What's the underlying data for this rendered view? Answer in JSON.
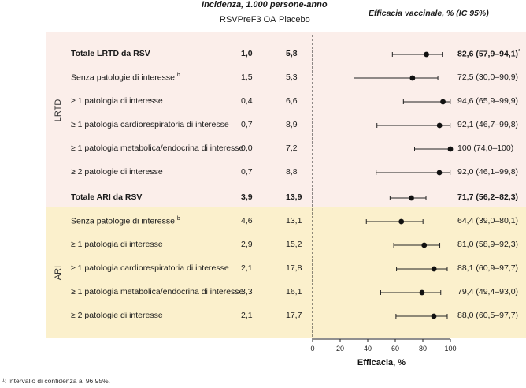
{
  "header": {
    "incidence_title": "Incidenza, 1.000 persone-anno",
    "col_vaccine": "RSVPreF3 OA",
    "col_placebo": "Placebo",
    "efficacy_title": "Efficacia vaccinale, % (IC 95%)"
  },
  "groups": {
    "lrtd": "LRTD",
    "ari": "ARI"
  },
  "footnote": "¹: Intervallo di confidenza al 96,95%.",
  "chart_data": {
    "type": "forest",
    "xlabel": "Efficacia, %",
    "xlim": [
      0,
      100
    ],
    "xticks": [
      "0",
      "20",
      "40",
      "60",
      "80",
      "100"
    ],
    "rows": [
      {
        "group": "LRTD",
        "label": "Totale LRTD da RSV",
        "sup": "",
        "bold": true,
        "vaccine": "1,0",
        "placebo": "5,8",
        "efficacy_text": "82,6 (57,9–94,1)",
        "eff_sup": "¹",
        "point": 82.6,
        "lo": 57.9,
        "hi": 94.1
      },
      {
        "group": "LRTD",
        "label": "Senza patologie di interesse",
        "sup": "b",
        "bold": false,
        "vaccine": "1,5",
        "placebo": "5,3",
        "efficacy_text": "72,5 (30,0–90,9)",
        "eff_sup": "",
        "point": 72.5,
        "lo": 30.0,
        "hi": 90.9
      },
      {
        "group": "LRTD",
        "label": "≥ 1 patologia di interesse",
        "sup": "",
        "bold": false,
        "vaccine": "0,4",
        "placebo": "6,6",
        "efficacy_text": "94,6 (65,9–99,9)",
        "eff_sup": "",
        "point": 94.6,
        "lo": 65.9,
        "hi": 99.9
      },
      {
        "group": "LRTD",
        "label": "≥ 1 patologia cardiorespiratoria di interesse",
        "sup": "",
        "bold": false,
        "vaccine": "0,7",
        "placebo": "8,9",
        "efficacy_text": "92,1 (46,7–99,8)",
        "eff_sup": "",
        "point": 92.1,
        "lo": 46.7,
        "hi": 99.8
      },
      {
        "group": "LRTD",
        "label": "≥ 1 patologia metabolica/endocrina di interesse",
        "sup": "",
        "bold": false,
        "vaccine": "0,0",
        "placebo": "7,2",
        "efficacy_text": "100 (74,0–100)",
        "eff_sup": "",
        "point": 100,
        "lo": 74.0,
        "hi": 100
      },
      {
        "group": "LRTD",
        "label": "≥ 2 patologie di interesse",
        "sup": "",
        "bold": false,
        "vaccine": "0,7",
        "placebo": "8,8",
        "efficacy_text": "92,0 (46,1–99,8)",
        "eff_sup": "",
        "point": 92.0,
        "lo": 46.1,
        "hi": 99.8
      },
      {
        "group": "ARI",
        "label": "Totale ARI da RSV",
        "sup": "",
        "bold": true,
        "vaccine": "3,9",
        "placebo": "13,9",
        "efficacy_text": "71,7 (56,2–82,3)",
        "eff_sup": "",
        "point": 71.7,
        "lo": 56.2,
        "hi": 82.3
      },
      {
        "group": "ARI",
        "label": "Senza patologie di interesse",
        "sup": "b",
        "bold": false,
        "vaccine": "4,6",
        "placebo": "13,1",
        "efficacy_text": "64,4 (39,0–80,1)",
        "eff_sup": "",
        "point": 64.4,
        "lo": 39.0,
        "hi": 80.1
      },
      {
        "group": "ARI",
        "label": "≥ 1 patologia di interesse",
        "sup": "",
        "bold": false,
        "vaccine": "2,9",
        "placebo": "15,2",
        "efficacy_text": "81,0 (58,9–92,3)",
        "eff_sup": "",
        "point": 81.0,
        "lo": 58.9,
        "hi": 92.3
      },
      {
        "group": "ARI",
        "label": "≥ 1 patologia cardiorespiratoria di interesse",
        "sup": "",
        "bold": false,
        "vaccine": "2,1",
        "placebo": "17,8",
        "efficacy_text": "88,1 (60,9–97,7)",
        "eff_sup": "",
        "point": 88.1,
        "lo": 60.9,
        "hi": 97.7
      },
      {
        "group": "ARI",
        "label": "≥ 1 patologia metabolica/endocrina di interesse",
        "sup": "",
        "bold": false,
        "vaccine": "3,3",
        "placebo": "16,1",
        "efficacy_text": "79,4 (49,4–93,0)",
        "eff_sup": "",
        "point": 79.4,
        "lo": 49.4,
        "hi": 93.0
      },
      {
        "group": "ARI",
        "label": "≥ 2 patologie di interesse",
        "sup": "",
        "bold": false,
        "vaccine": "2,1",
        "placebo": "17,7",
        "efficacy_text": "88,0 (60,5–97,7)",
        "eff_sup": "",
        "point": 88.0,
        "lo": 60.5,
        "hi": 97.7
      }
    ]
  }
}
